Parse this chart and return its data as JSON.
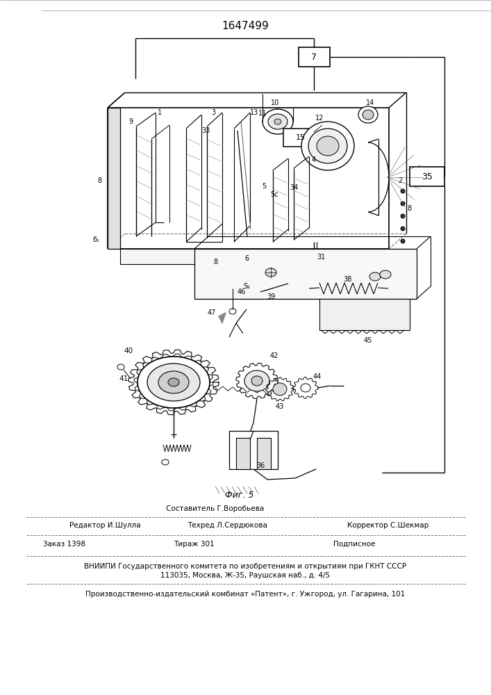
{
  "patent_number": "1647499",
  "figure_label": "Фиг. 5",
  "bg_color": "#ffffff",
  "footer": {
    "sestavitel": "Составитель Г.Воробьева",
    "redaktor": "Редактор И.Шулла",
    "tehred": "Техред Л.Сердюкова",
    "korrektor": "Корректор С.Шекмар",
    "zakaz": "Заказ 1398",
    "tirazh": "Тираж 301",
    "podpisnoe": "Подписное",
    "vniip1": "ВНИИПИ Государственного комитета по изобретениям и открытиям при ГКНТ СССР",
    "vniip2": "113035, Москва, Ж-35, Раушская наб., д. 4/5",
    "proizv": "Производственно-издательский комбинат «Патент», г. Ужгород, ул. Гагарина, 101"
  }
}
